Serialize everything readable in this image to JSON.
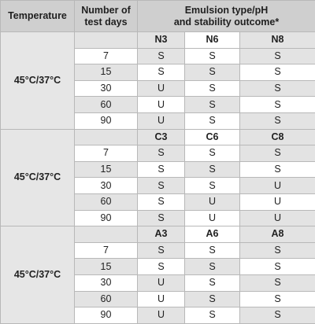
{
  "header": {
    "temperature": "Temperature",
    "days": "Number of test days",
    "outcome_line1": "Emulsion type/pH",
    "outcome_line2": "and stability outcome*"
  },
  "groups": [
    {
      "temperature": "45°C/37°C",
      "emulsions": [
        "N3",
        "N6",
        "N8"
      ],
      "rows": [
        {
          "days": "7",
          "values": [
            "S",
            "S",
            "S"
          ]
        },
        {
          "days": "15",
          "values": [
            "S",
            "S",
            "S"
          ]
        },
        {
          "days": "30",
          "values": [
            "U",
            "S",
            "S"
          ]
        },
        {
          "days": "60",
          "values": [
            "U",
            "S",
            "S"
          ]
        },
        {
          "days": "90",
          "values": [
            "U",
            "S",
            "S"
          ]
        }
      ]
    },
    {
      "temperature": "45°C/37°C",
      "emulsions": [
        "C3",
        "C6",
        "C8"
      ],
      "rows": [
        {
          "days": "7",
          "values": [
            "S",
            "S",
            "S"
          ]
        },
        {
          "days": "15",
          "values": [
            "S",
            "S",
            "S"
          ]
        },
        {
          "days": "30",
          "values": [
            "S",
            "S",
            "U"
          ]
        },
        {
          "days": "60",
          "values": [
            "S",
            "U",
            "U"
          ]
        },
        {
          "days": "90",
          "values": [
            "S",
            "U",
            "U"
          ]
        }
      ]
    },
    {
      "temperature": "45°C/37°C",
      "emulsions": [
        "A3",
        "A6",
        "A8"
      ],
      "rows": [
        {
          "days": "7",
          "values": [
            "S",
            "S",
            "S"
          ]
        },
        {
          "days": "15",
          "values": [
            "S",
            "S",
            "S"
          ]
        },
        {
          "days": "30",
          "values": [
            "U",
            "S",
            "S"
          ]
        },
        {
          "days": "60",
          "values": [
            "U",
            "S",
            "S"
          ]
        },
        {
          "days": "90",
          "values": [
            "U",
            "S",
            "S"
          ]
        }
      ]
    }
  ],
  "colors": {
    "header_bg": "#cfcfcf",
    "shaded_cell": "#e3e3e3",
    "border": "#b8b8b8"
  }
}
